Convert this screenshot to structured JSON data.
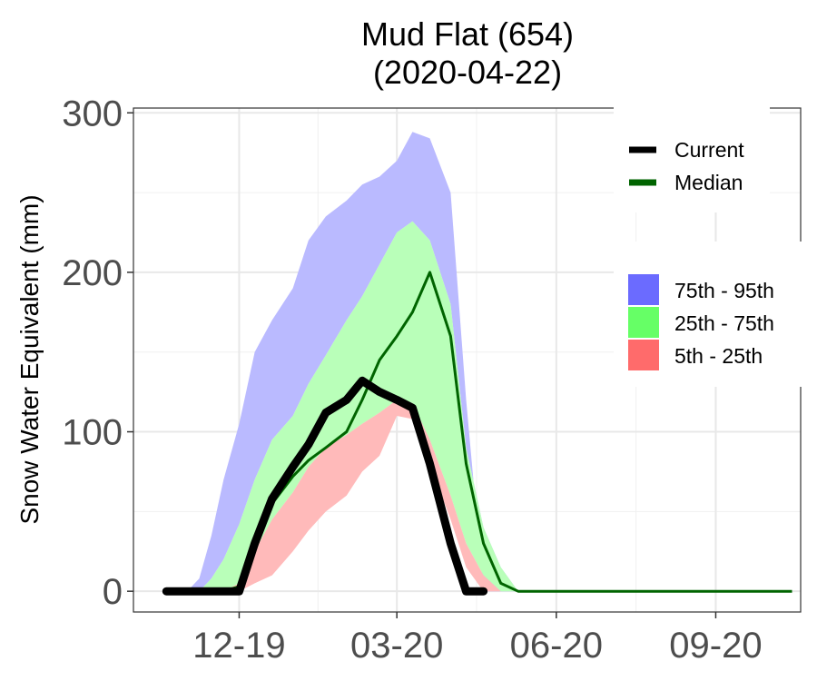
{
  "chart_data": {
    "type": "area",
    "title_line1": "Mud Flat (654)",
    "title_line2": "(2020-04-22)",
    "xlabel": "",
    "ylabel": "Snow Water Equivalent (mm)",
    "ylim": [
      -13,
      303
    ],
    "xlim": [
      "2019-10-01",
      "2020-10-20"
    ],
    "y_ticks": [
      0,
      100,
      200,
      300
    ],
    "x_ticks": [
      {
        "date": "2019-12-01",
        "label": "12-19"
      },
      {
        "date": "2020-03-01",
        "label": "03-20"
      },
      {
        "date": "2020-06-01",
        "label": "06-20"
      },
      {
        "date": "2020-09-01",
        "label": "09-20"
      }
    ],
    "grid": true,
    "legend_position": "top-right",
    "legend_lines": [
      {
        "label": "Current",
        "color": "#000000"
      },
      {
        "label": "Median",
        "color": "#006400"
      }
    ],
    "legend_bands": [
      {
        "label": "75th - 95th",
        "color": "#6b6bff"
      },
      {
        "label": "25th - 75th",
        "color": "#66ff66"
      },
      {
        "label": "5th - 25th",
        "color": "#ff6b6b"
      }
    ],
    "band_fill_colors": {
      "p75_p95": "#babaff",
      "p25_p75": "#b9ffb9",
      "p5_p25": "#ffbaba"
    },
    "x": [
      "2019-10-20",
      "2019-11-01",
      "2019-11-08",
      "2019-11-15",
      "2019-11-22",
      "2019-12-01",
      "2019-12-10",
      "2019-12-20",
      "2020-01-01",
      "2020-01-10",
      "2020-01-20",
      "2020-02-01",
      "2020-02-10",
      "2020-02-20",
      "2020-03-01",
      "2020-03-10",
      "2020-03-20",
      "2020-04-01",
      "2020-04-10",
      "2020-04-20",
      "2020-04-30",
      "2020-05-10",
      "2020-05-20",
      "2020-05-31",
      "2020-06-10",
      "2020-10-15"
    ],
    "series": [
      {
        "key": "p95",
        "values": [
          0,
          0,
          8,
          35,
          70,
          105,
          150,
          170,
          190,
          220,
          235,
          245,
          255,
          260,
          270,
          288,
          284,
          250,
          120,
          0,
          0,
          0,
          0,
          0,
          0,
          0
        ]
      },
      {
        "key": "p75",
        "values": [
          0,
          0,
          0,
          8,
          20,
          42,
          70,
          95,
          110,
          130,
          148,
          170,
          185,
          205,
          225,
          232,
          220,
          180,
          90,
          40,
          15,
          0,
          0,
          0,
          0,
          0
        ]
      },
      {
        "key": "p25",
        "values": [
          0,
          0,
          0,
          0,
          0,
          5,
          25,
          45,
          62,
          78,
          90,
          98,
          105,
          112,
          120,
          118,
          95,
          60,
          30,
          10,
          0,
          0,
          0,
          0,
          0,
          0
        ]
      },
      {
        "key": "p5",
        "values": [
          0,
          0,
          0,
          0,
          0,
          0,
          5,
          10,
          25,
          38,
          50,
          60,
          75,
          85,
          110,
          108,
          80,
          45,
          15,
          0,
          0,
          0,
          0,
          0,
          0,
          0
        ]
      },
      {
        "name": "Median",
        "key": "median",
        "values": [
          0,
          0,
          0,
          0,
          0,
          3,
          25,
          55,
          72,
          82,
          90,
          100,
          120,
          145,
          160,
          175,
          200,
          160,
          80,
          30,
          5,
          0,
          0,
          0,
          0,
          0
        ]
      },
      {
        "name": "Current",
        "key": "current",
        "values": [
          0,
          0,
          0,
          0,
          0,
          0,
          30,
          58,
          78,
          92,
          112,
          120,
          132,
          125,
          120,
          115,
          80,
          30,
          0,
          0,
          null,
          null,
          null,
          null,
          null,
          null
        ]
      }
    ]
  }
}
